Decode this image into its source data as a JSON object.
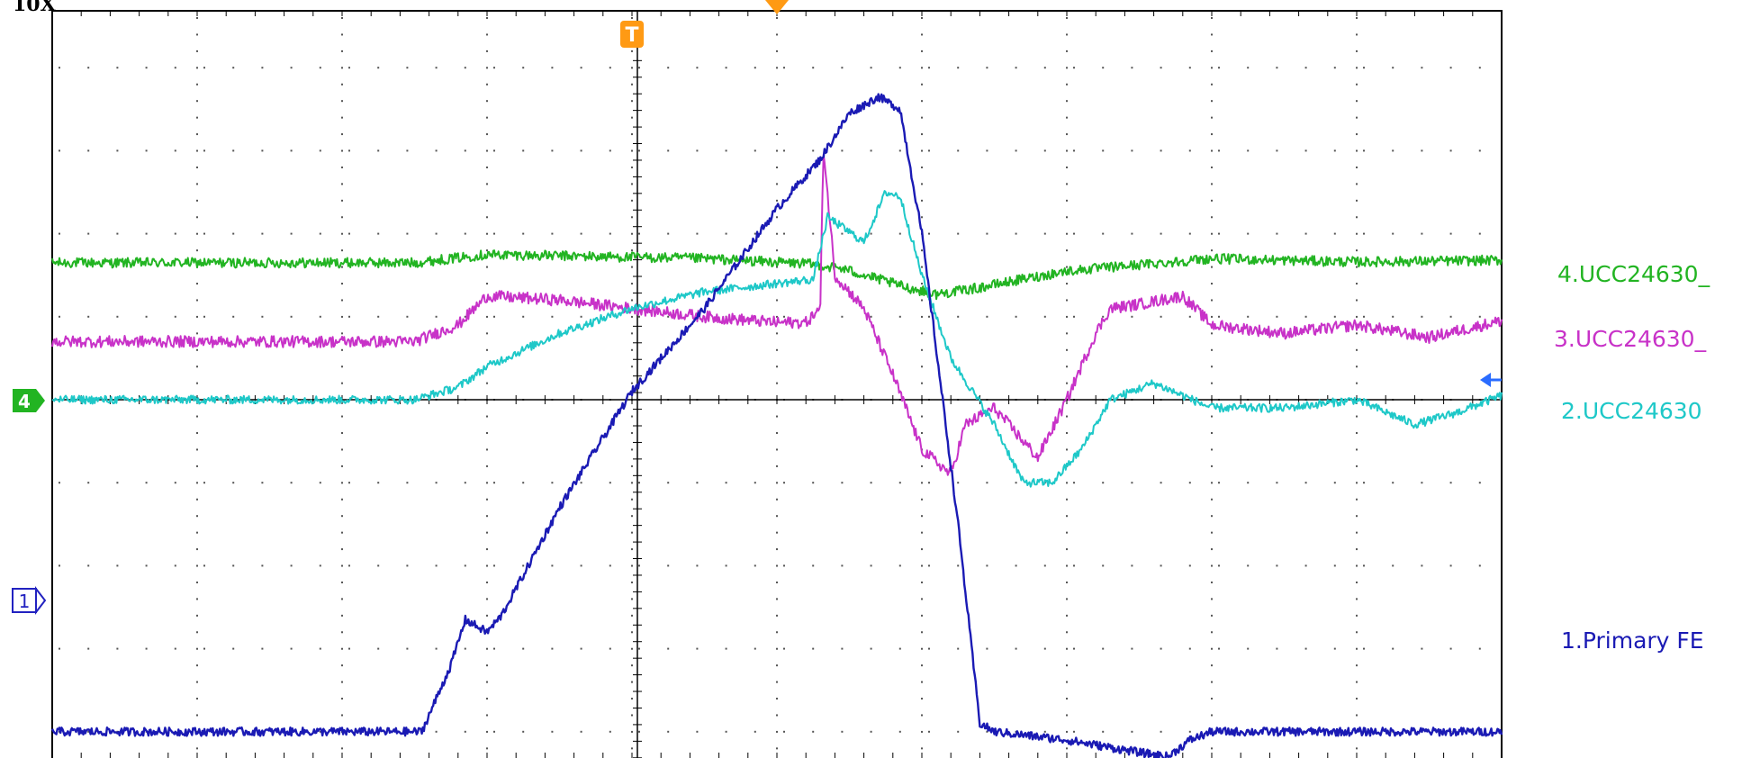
{
  "header": {
    "text": "10X"
  },
  "chart_data": {
    "type": "line",
    "xlim": [
      0,
      10
    ],
    "ylim": [
      -8,
      4
    ],
    "grid": true,
    "markers": {
      "trigger_label": "T",
      "ch4_level_tag": "4",
      "ch1_level_tag": "1"
    },
    "series": [
      {
        "name": "4.UCC24630_",
        "color": "#22b422",
        "noise": 0.06,
        "x": [
          0,
          2.5,
          3.0,
          4.5,
          5.2,
          5.45,
          5.9,
          6.1,
          6.4,
          6.6,
          7.0,
          8.0,
          9.0,
          10.0
        ],
        "y": [
          1.65,
          1.65,
          1.75,
          1.7,
          1.64,
          1.58,
          1.35,
          1.27,
          1.35,
          1.42,
          1.55,
          1.7,
          1.66,
          1.68
        ]
      },
      {
        "name": "3.UCC24630_",
        "color": "#c832c8",
        "noise": 0.07,
        "x": [
          0,
          2.5,
          2.8,
          3.0,
          3.5,
          4.0,
          4.5,
          5.0,
          5.2,
          5.3,
          5.32,
          5.4,
          5.6,
          5.8,
          6.0,
          6.2,
          6.3,
          6.5,
          6.8,
          7.0,
          7.2,
          7.3,
          7.5,
          7.8,
          8.0,
          8.5,
          9.0,
          9.5,
          10.0
        ],
        "y": [
          0.7,
          0.7,
          0.9,
          1.25,
          1.2,
          1.1,
          1.0,
          0.93,
          0.93,
          1.1,
          3.05,
          1.5,
          1.1,
          0.3,
          -0.6,
          -0.9,
          -0.3,
          -0.1,
          -0.7,
          0.0,
          0.8,
          1.1,
          1.15,
          1.25,
          0.9,
          0.8,
          0.9,
          0.75,
          0.95
        ]
      },
      {
        "name": "2.UCC24630",
        "color": "#1ec8c8",
        "noise": 0.05,
        "x": [
          0,
          2.5,
          2.8,
          3.0,
          3.5,
          4.0,
          4.5,
          5.0,
          5.25,
          5.35,
          5.6,
          5.75,
          5.85,
          6.0,
          6.2,
          6.5,
          6.7,
          6.9,
          7.1,
          7.3,
          7.6,
          8.0,
          8.5,
          9.0,
          9.4,
          9.7,
          10.0
        ],
        "y": [
          0.0,
          0.0,
          0.15,
          0.4,
          0.8,
          1.1,
          1.3,
          1.4,
          1.45,
          2.2,
          1.9,
          2.5,
          2.45,
          1.5,
          0.5,
          -0.3,
          -1.0,
          -1.0,
          -0.6,
          0.0,
          0.2,
          -0.1,
          -0.1,
          0.0,
          -0.3,
          -0.15,
          0.05
        ]
      },
      {
        "name": "1.Primary FE",
        "color": "#1a1ab4",
        "noise": 0.05,
        "x": [
          0,
          2.5,
          2.55,
          2.75,
          2.85,
          3.0,
          3.1,
          3.5,
          4.0,
          4.5,
          5.0,
          5.3,
          5.5,
          5.7,
          5.85,
          6.0,
          6.25,
          6.4,
          6.5,
          7.0,
          7.5,
          7.7,
          7.85,
          8.0,
          9.0,
          10.0
        ],
        "y": [
          -4.0,
          -4.0,
          -4.0,
          -3.2,
          -2.65,
          -2.8,
          -2.6,
          -1.3,
          0.1,
          1.1,
          2.3,
          2.9,
          3.45,
          3.65,
          3.5,
          2.0,
          -1.5,
          -3.9,
          -4.0,
          -4.1,
          -4.25,
          -4.3,
          -4.1,
          -4.0,
          -4.0,
          -4.0
        ]
      }
    ]
  }
}
